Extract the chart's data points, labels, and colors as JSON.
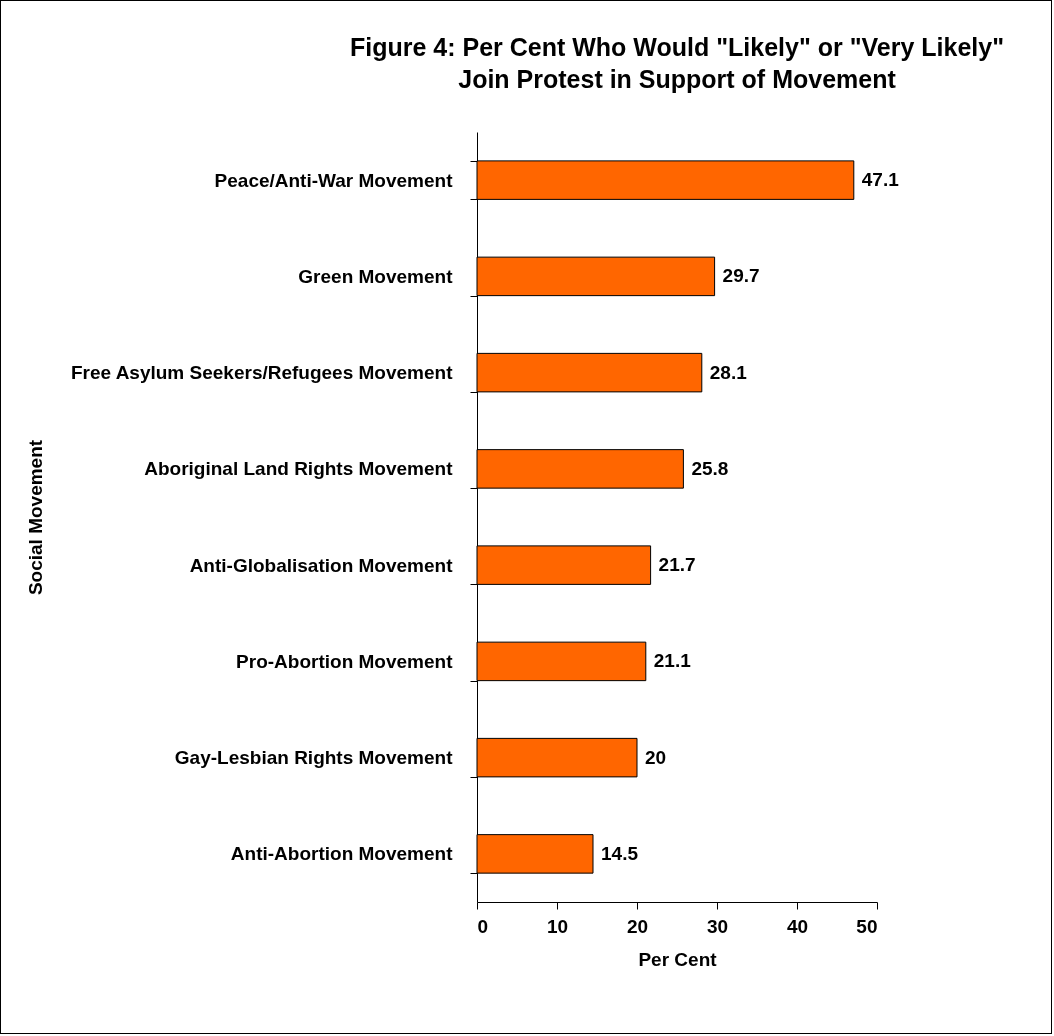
{
  "chart_data": {
    "type": "bar",
    "orientation": "horizontal",
    "title": "Figure 4: Per Cent Who Would \"Likely\" or \"Very Likely\"\nJoin Protest in Support of Movement",
    "xlabel": "Per Cent",
    "ylabel": "Social Movement",
    "categories": [
      "Peace/Anti-War Movement",
      "Green Movement",
      "Free Asylum Seekers/Refugees Movement",
      "Aboriginal Land Rights Movement",
      "Anti-Globalisation Movement",
      "Pro-Abortion Movement",
      "Gay-Lesbian Rights Movement",
      "Anti-Abortion Movement"
    ],
    "values": [
      47.1,
      29.7,
      28.1,
      25.8,
      21.7,
      21.1,
      20,
      14.5
    ],
    "color": "#ff6600",
    "xlim": [
      0,
      50
    ],
    "xticks": [
      0,
      10,
      20,
      30,
      40,
      50
    ],
    "data_labels": true
  }
}
